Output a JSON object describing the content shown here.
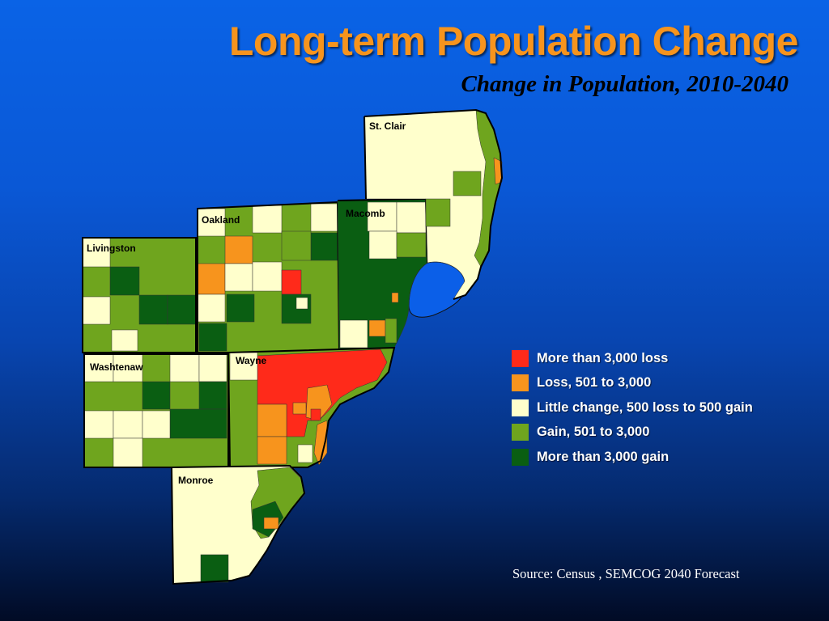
{
  "title": "Long-term Population Change",
  "subtitle": "Change in Population, 2010-2040",
  "colors": {
    "more_than_3000_loss": "#ff2a1a",
    "loss_501_3000": "#f7941d",
    "little_change": "#ffffcc",
    "gain_501_3000": "#6fa51e",
    "more_than_3000_gain": "#0a5e12",
    "water": "#0b5fe8",
    "title": "#f7941d"
  },
  "counties": {
    "st_clair": "St. Clair",
    "oakland": "Oakland",
    "macomb": "Macomb",
    "livingston": "Livingston",
    "washtenaw": "Washtenaw",
    "wayne": "Wayne",
    "monroe": "Monroe"
  },
  "legend": [
    {
      "label": "More than 3,000 loss",
      "color": "#ff2a1a"
    },
    {
      "label": "Loss, 501 to 3,000",
      "color": "#f7941d"
    },
    {
      "label": "Little change, 500 loss to 500 gain",
      "color": "#ffffcc"
    },
    {
      "label": "Gain, 501 to 3,000",
      "color": "#6fa51e"
    },
    {
      "label": "More than 3,000 gain",
      "color": "#0a5e12"
    }
  ],
  "source": "Source: Census , SEMCOG 2040 Forecast"
}
